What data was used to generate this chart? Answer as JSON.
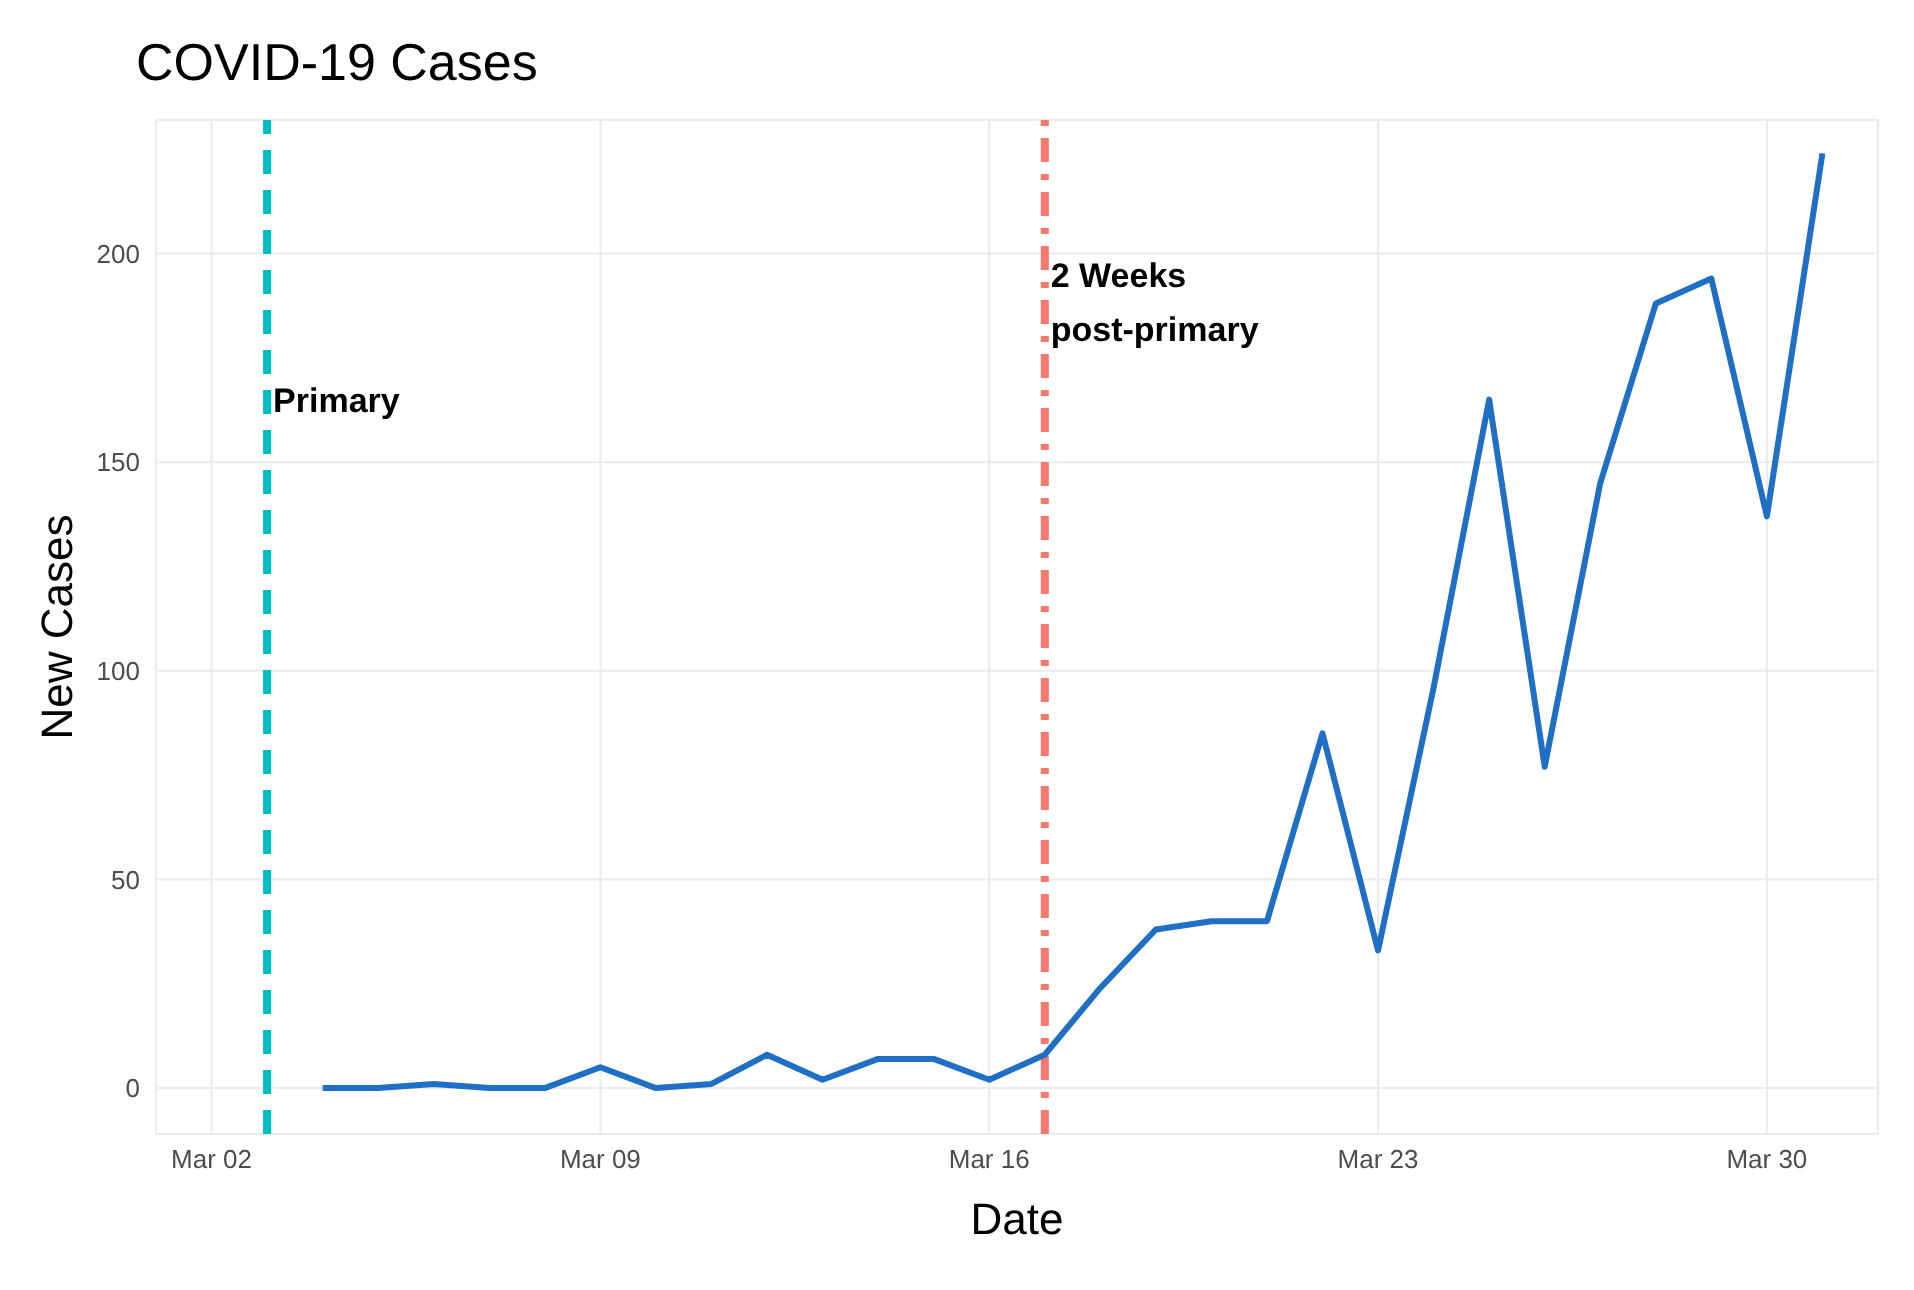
{
  "chart_data": {
    "type": "line",
    "title": "COVID-19 Cases",
    "xlabel": "Date",
    "ylabel": "New Cases",
    "x": [
      "--03-04",
      "--03-05",
      "--03-06",
      "--03-07",
      "--03-08",
      "--03-09",
      "--03-10",
      "--03-11",
      "--03-12",
      "--03-13",
      "--03-14",
      "--03-15",
      "--03-16",
      "--03-17",
      "--03-18",
      "--03-19",
      "--03-20",
      "--03-21",
      "--03-22",
      "--03-23",
      "--03-24",
      "--03-25",
      "--03-26",
      "--03-27",
      "--03-28",
      "--03-29",
      "--03-30",
      "--03-31"
    ],
    "series": [
      {
        "color": "#1f6fc5",
        "values": [
          0,
          0,
          1,
          0,
          0,
          5,
          0,
          1,
          8,
          2,
          7,
          7,
          2,
          8,
          24,
          38,
          40,
          40,
          85,
          33,
          96,
          165,
          77,
          145,
          188,
          194,
          137,
          224
        ]
      }
    ],
    "xlim": [
      "--03-01",
      "--04-01"
    ],
    "xticks": [
      {
        "value": "--03-02",
        "label": "Mar 02"
      },
      {
        "value": "--03-09",
        "label": "Mar 09"
      },
      {
        "value": "--03-16",
        "label": "Mar 16"
      },
      {
        "value": "--03-23",
        "label": "Mar 23"
      },
      {
        "value": "--03-30",
        "label": "Mar 30"
      }
    ],
    "ylim": [
      -11,
      232
    ],
    "yticks": [
      0,
      50,
      100,
      150,
      200
    ],
    "ref_lines": [
      {
        "axis": "x",
        "value": "--03-03",
        "color": "#00bfc4",
        "line_style": "dashed"
      },
      {
        "axis": "x",
        "value": "--03-17",
        "color": "#f8766d",
        "line_style": "dashdot"
      }
    ],
    "annotations": [
      {
        "text": "Primary",
        "x": "--03-03",
        "y": 162
      },
      {
        "text": "2 Weeks\npost-primary",
        "x": "--03-17",
        "y": 192
      }
    ],
    "grid": true,
    "legend": false,
    "marker": "none",
    "line_style": "solid"
  }
}
